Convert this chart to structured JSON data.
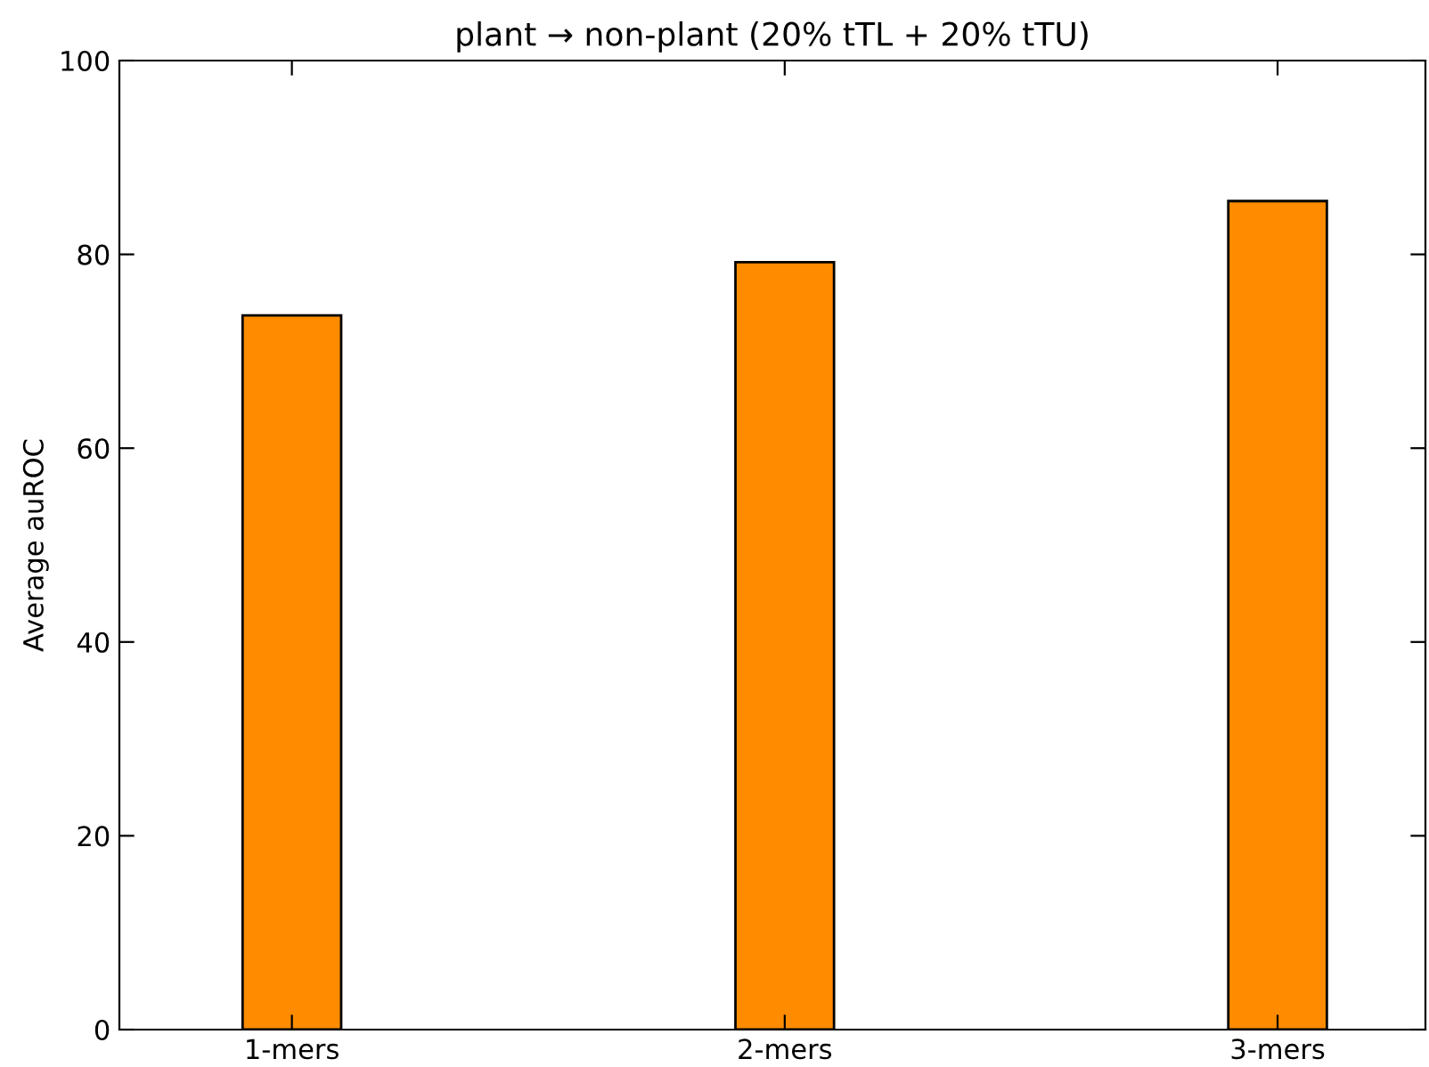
{
  "chart_data": {
    "type": "bar",
    "title": "plant → non-plant (20% tTL + 20% tTU)",
    "ylabel": "Average auROC",
    "categories": [
      "1-mers",
      "2-mers",
      "3-mers"
    ],
    "series": [
      {
        "color": "#ff8c00",
        "values": [
          73.7,
          79.2,
          85.5
        ]
      }
    ],
    "ylim": [
      0,
      100
    ],
    "yticks": [
      0,
      20,
      40,
      60,
      80,
      100
    ],
    "grid": false,
    "legend": false
  }
}
